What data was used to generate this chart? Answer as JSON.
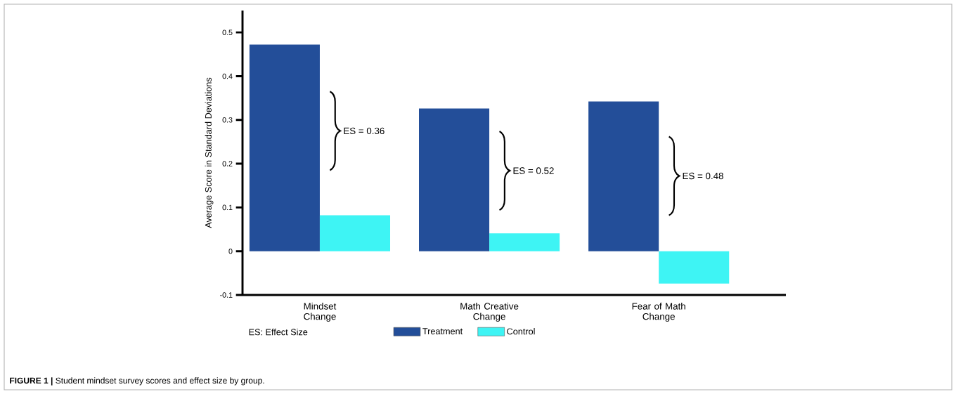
{
  "chart_data": {
    "type": "bar",
    "ylabel": "Average Score in Standard Deviations",
    "categories": [
      "Mindset Change",
      "Math Creative Change",
      "Fear of Math Change"
    ],
    "series": [
      {
        "name": "Treatment",
        "color": "#234e99",
        "values": [
          0.472,
          0.326,
          0.342
        ]
      },
      {
        "name": "Control",
        "color": "#3ef4f4",
        "values": [
          0.082,
          0.041,
          -0.074
        ]
      }
    ],
    "ylim": [
      -0.1,
      0.55
    ],
    "yticks": [
      -0.1,
      0,
      0.1,
      0.2,
      0.3,
      0.4,
      0.5
    ],
    "legend": "bottom",
    "annotations": [
      {
        "text": "ES = 0.36",
        "x": "Mindset Change",
        "y": 0.275
      },
      {
        "text": "ES = 0.52",
        "x": "Math Creative Change",
        "y": 0.184
      },
      {
        "text": "ES = 0.48",
        "x": "Fear of Math Change",
        "y": 0.172
      },
      "ES: Effect Size",
      "**FIGURE 1 |** Student mindset survey scores and effect size by group."
    ]
  }
}
